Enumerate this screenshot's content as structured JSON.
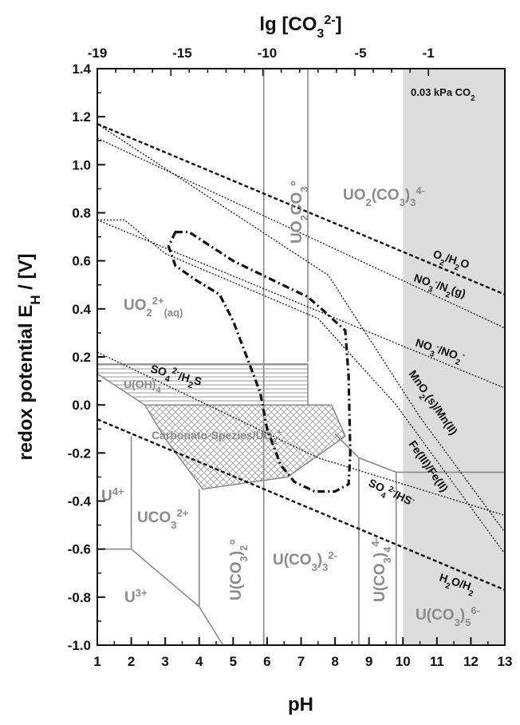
{
  "chart_data": {
    "type": "line",
    "title": "",
    "xlabel": "pH",
    "ylabel": "redox potential E_H / [V]",
    "top_xlabel": "lg [CO3 2-]",
    "xlim": [
      1,
      13
    ],
    "ylim": [
      -1.0,
      1.4
    ],
    "x_ticks": [
      "1",
      "2",
      "3",
      "4",
      "5",
      "6",
      "7",
      "8",
      "9",
      "10",
      "11",
      "12",
      "13"
    ],
    "y_ticks": [
      "1.4",
      "1.2",
      "1.0",
      "0.8",
      "0.6",
      "0.4",
      "0.2",
      "0.0",
      "-0.2",
      "-0.4",
      "-0.6",
      "-0.8",
      "-1.0"
    ],
    "top_ticks": [
      "-19",
      "-15",
      "-10",
      "-5",
      "-1"
    ],
    "atmosphere_box": {
      "label": "0.03 kPa CO2",
      "x_range": [
        10,
        13
      ]
    },
    "redox_couples": [
      {
        "name": "O2/H2O",
        "style": "dashed",
        "points": [
          [
            1,
            1.17
          ],
          [
            13,
            0.46
          ]
        ]
      },
      {
        "name": "H2O/H2",
        "style": "dashed",
        "points": [
          [
            1,
            -0.06
          ],
          [
            13,
            -0.77
          ]
        ]
      },
      {
        "name": "NO3-/N2(g)",
        "style": "dotted",
        "points": [
          [
            1,
            1.11
          ],
          [
            13,
            0.32
          ]
        ]
      },
      {
        "name": "NO3-/NO2-",
        "style": "dotted",
        "points": [
          [
            1,
            0.77
          ],
          [
            13,
            0.07
          ]
        ]
      },
      {
        "name": "MnO2(s)/Mn(II)",
        "style": "dotted",
        "points": [
          [
            1,
            1.17
          ],
          [
            7.8,
            0.54
          ],
          [
            10.5,
            -0.05
          ],
          [
            13,
            -0.53
          ]
        ]
      },
      {
        "name": "Fe(III)/Fe(II)",
        "style": "dotted",
        "points": [
          [
            1,
            0.77
          ],
          [
            1.8,
            0.77
          ],
          [
            3,
            0.63
          ],
          [
            7.5,
            0.36
          ],
          [
            9.8,
            0.0
          ],
          [
            13,
            -0.62
          ]
        ]
      },
      {
        "name": "SO4 2-/HS-",
        "style": "dotted",
        "points": [
          [
            1,
            0.22
          ],
          [
            7.5,
            -0.22
          ],
          [
            13,
            -0.46
          ]
        ]
      }
    ],
    "uranium_boundaries": [
      {
        "points": [
          [
            5.9,
            -1.0
          ],
          [
            5.9,
            1.4
          ]
        ]
      },
      {
        "points": [
          [
            7.2,
            0.18
          ],
          [
            7.2,
            1.4
          ]
        ]
      },
      {
        "points": [
          [
            1,
            -0.6
          ],
          [
            2.0,
            -0.6
          ],
          [
            2.0,
            -0.13
          ]
        ]
      },
      {
        "points": [
          [
            2.0,
            -0.6
          ],
          [
            4.0,
            -0.84
          ],
          [
            4.7,
            -1.0
          ]
        ]
      },
      {
        "points": [
          [
            4.0,
            -0.84
          ],
          [
            4.0,
            -0.35
          ]
        ]
      },
      {
        "points": [
          [
            8.7,
            -1.0
          ],
          [
            8.7,
            -0.22
          ]
        ]
      },
      {
        "points": [
          [
            9.8,
            -1.0
          ],
          [
            9.8,
            -0.28
          ],
          [
            13,
            -0.28
          ]
        ]
      },
      {
        "points": [
          [
            8.0,
            -0.12
          ],
          [
            8.7,
            -0.22
          ],
          [
            9.8,
            -0.28
          ]
        ]
      }
    ],
    "hatched_region_upper": [
      [
        1,
        0.17
      ],
      [
        7.2,
        0.17
      ],
      [
        7.2,
        0.0
      ],
      [
        2.4,
        0.0
      ],
      [
        1,
        0.13
      ]
    ],
    "hatched_region_lower": [
      [
        2.4,
        0.0
      ],
      [
        7.9,
        0.0
      ],
      [
        8.3,
        -0.13
      ],
      [
        6.6,
        -0.3
      ],
      [
        4.1,
        -0.35
      ],
      [
        3.0,
        -0.14
      ]
    ],
    "dashdot_contour": [
      [
        3.3,
        0.72
      ],
      [
        3.7,
        0.72
      ],
      [
        5.0,
        0.6
      ],
      [
        6.6,
        0.49
      ],
      [
        7.2,
        0.45
      ],
      [
        7.6,
        0.4
      ],
      [
        8.3,
        0.31
      ],
      [
        8.4,
        0.12
      ],
      [
        8.45,
        -0.2
      ],
      [
        8.4,
        -0.33
      ],
      [
        8.0,
        -0.36
      ],
      [
        7.4,
        -0.36
      ],
      [
        6.8,
        -0.32
      ],
      [
        6.4,
        -0.25
      ],
      [
        6.0,
        -0.1
      ],
      [
        5.8,
        0.05
      ],
      [
        5.4,
        0.2
      ],
      [
        5.0,
        0.35
      ],
      [
        4.6,
        0.46
      ],
      [
        3.9,
        0.52
      ],
      [
        3.3,
        0.58
      ],
      [
        3.1,
        0.66
      ],
      [
        3.3,
        0.72
      ]
    ],
    "species_labels": [
      {
        "text": "UO2(CO3)3 4-",
        "x": 10.2,
        "y": 0.92
      },
      {
        "text": "UO2CO3°",
        "x": 6.4,
        "y": 0.95
      },
      {
        "text": "UO2 2+(aq)",
        "x": 3.7,
        "y": 0.44
      },
      {
        "text": "U4+",
        "x": 1.4,
        "y": -0.37
      },
      {
        "text": "UCO3 2+",
        "x": 2.8,
        "y": -0.46
      },
      {
        "text": "U3+",
        "x": 1.5,
        "y": -0.8
      },
      {
        "text": "U(CO3)2°",
        "x": 5.0,
        "y": -0.6
      },
      {
        "text": "U(CO3)3 2-",
        "x": 7.1,
        "y": -0.64
      },
      {
        "text": "U(CO3)4 4-",
        "x": 9.25,
        "y": -0.64
      },
      {
        "text": "U(CO3)5 6-",
        "x": 11.1,
        "y": -0.86
      },
      {
        "text": "U(OH)4",
        "x": 2.0,
        "y": 0.09
      },
      {
        "text": "Carbonato-Spezies/UO2+",
        "x": 5.0,
        "y": -0.12
      }
    ],
    "couple_labels": [
      {
        "text": "O2/H2O",
        "x": 11.4,
        "y": 0.61
      },
      {
        "text": "NO3-/N2(g)",
        "x": 11.55,
        "y": 0.44
      },
      {
        "text": "NO3-/NO2-",
        "x": 11.55,
        "y": 0.23
      },
      {
        "text": "MnO2(s)/Mn(II)",
        "x": 11.2,
        "y": 0.06
      },
      {
        "text": "Fe(III)/Fe(II)",
        "x": 11.0,
        "y": -0.28
      },
      {
        "text": "SO4 2-/HS-",
        "x": 10.4,
        "y": -0.4
      },
      {
        "text": "H2O/H2",
        "x": 12.0,
        "y": -0.69
      },
      {
        "text": "SO4 2-/H2S",
        "x": 3.5,
        "y": 0.1
      }
    ]
  }
}
